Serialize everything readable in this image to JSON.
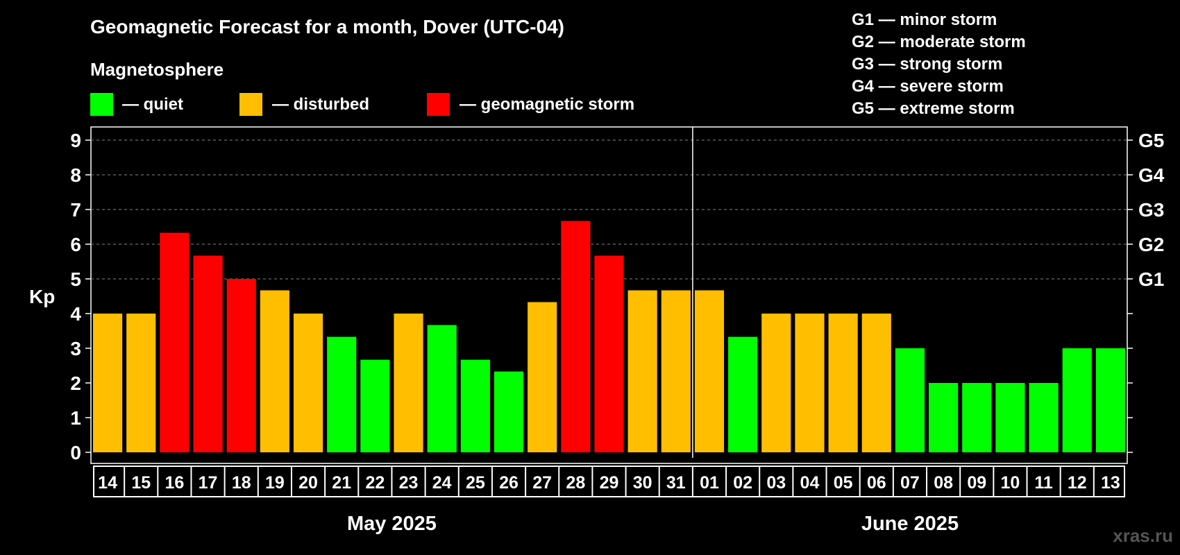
{
  "title": "Geomagnetic Forecast for a month, Dover (UTC-04)",
  "legend": {
    "heading": "Magnetosphere",
    "items": [
      {
        "label": "— quiet",
        "color": "#00ff00"
      },
      {
        "label": "— disturbed",
        "color": "#ffbf00"
      },
      {
        "label": "— geomagnetic storm",
        "color": "#ff0000"
      }
    ],
    "g_scale": [
      "G1 — minor storm",
      "G2 — moderate storm",
      "G3 — strong storm",
      "G4 — severe storm",
      "G5 — extreme storm"
    ]
  },
  "watermark": "xras.ru",
  "chart_data": {
    "type": "bar",
    "ylabel": "Kp",
    "ylim": [
      0,
      9
    ],
    "grid": true,
    "yticks": [
      "0",
      "1",
      "2",
      "3",
      "4",
      "5",
      "6",
      "7",
      "8",
      "9"
    ],
    "right_axis_labels": [
      {
        "kp": 5,
        "label": "G1"
      },
      {
        "kp": 6,
        "label": "G2"
      },
      {
        "kp": 7,
        "label": "G3"
      },
      {
        "kp": 8,
        "label": "G4"
      },
      {
        "kp": 9,
        "label": "G5"
      }
    ],
    "categories": [
      "14",
      "15",
      "16",
      "17",
      "18",
      "19",
      "20",
      "21",
      "22",
      "23",
      "24",
      "25",
      "26",
      "27",
      "28",
      "29",
      "30",
      "31",
      "01",
      "02",
      "03",
      "04",
      "05",
      "06",
      "07",
      "08",
      "09",
      "10",
      "11",
      "12",
      "13"
    ],
    "values": [
      4,
      4,
      6.33,
      5.67,
      5,
      4.67,
      4,
      3.33,
      2.67,
      4,
      3.67,
      2.67,
      2.33,
      4.33,
      6.67,
      5.67,
      4.67,
      4.67,
      4.67,
      3.33,
      4,
      4,
      4,
      4,
      3,
      2,
      2,
      2,
      2,
      3,
      3
    ],
    "levels": [
      "disturbed",
      "disturbed",
      "storm",
      "storm",
      "storm",
      "disturbed",
      "disturbed",
      "quiet",
      "quiet",
      "disturbed",
      "quiet",
      "quiet",
      "quiet",
      "disturbed",
      "storm",
      "storm",
      "disturbed",
      "disturbed",
      "disturbed",
      "quiet",
      "disturbed",
      "disturbed",
      "disturbed",
      "disturbed",
      "quiet",
      "quiet",
      "quiet",
      "quiet",
      "quiet",
      "quiet",
      "quiet"
    ],
    "level_colors": {
      "quiet": "#00ff00",
      "disturbed": "#ffbf00",
      "storm": "#ff0000"
    },
    "months": [
      {
        "label": "May 2025",
        "count": 18
      },
      {
        "label": "June 2025",
        "count": 13
      }
    ]
  }
}
